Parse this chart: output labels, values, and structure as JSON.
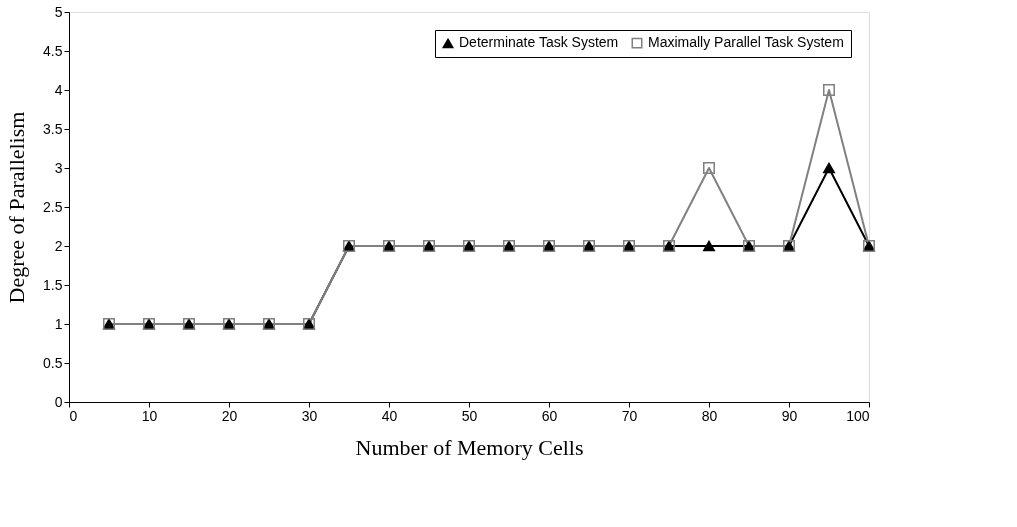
{
  "chart_data": {
    "type": "line",
    "xlabel": "Number of Memory Cells",
    "ylabel": "Degree of Parallelism",
    "x": [
      5,
      10,
      15,
      20,
      25,
      30,
      35,
      40,
      45,
      50,
      55,
      60,
      65,
      70,
      75,
      80,
      85,
      90,
      95,
      100
    ],
    "series": [
      {
        "name": "Determinate Task System",
        "color": "#000000",
        "marker": "triangle",
        "values": [
          1,
          1,
          1,
          1,
          1,
          1,
          2,
          2,
          2,
          2,
          2,
          2,
          2,
          2,
          2,
          2,
          2,
          2,
          3,
          2
        ]
      },
      {
        "name": "Maximally Parallel Task System",
        "color": "#808080",
        "marker": "square",
        "values": [
          1,
          1,
          1,
          1,
          1,
          1,
          2,
          2,
          2,
          2,
          2,
          2,
          2,
          2,
          2,
          3,
          2,
          2,
          4,
          2
        ]
      }
    ],
    "xlim": [
      0,
      100
    ],
    "xticks": [
      0,
      10,
      20,
      30,
      40,
      50,
      60,
      70,
      80,
      90,
      100
    ],
    "ylim": [
      0,
      5
    ],
    "yticks": [
      0,
      0.5,
      1,
      1.5,
      2,
      2.5,
      3,
      3.5,
      4,
      4.5,
      5
    ],
    "grid": false,
    "legend": "top right",
    "line_style": "solid"
  }
}
